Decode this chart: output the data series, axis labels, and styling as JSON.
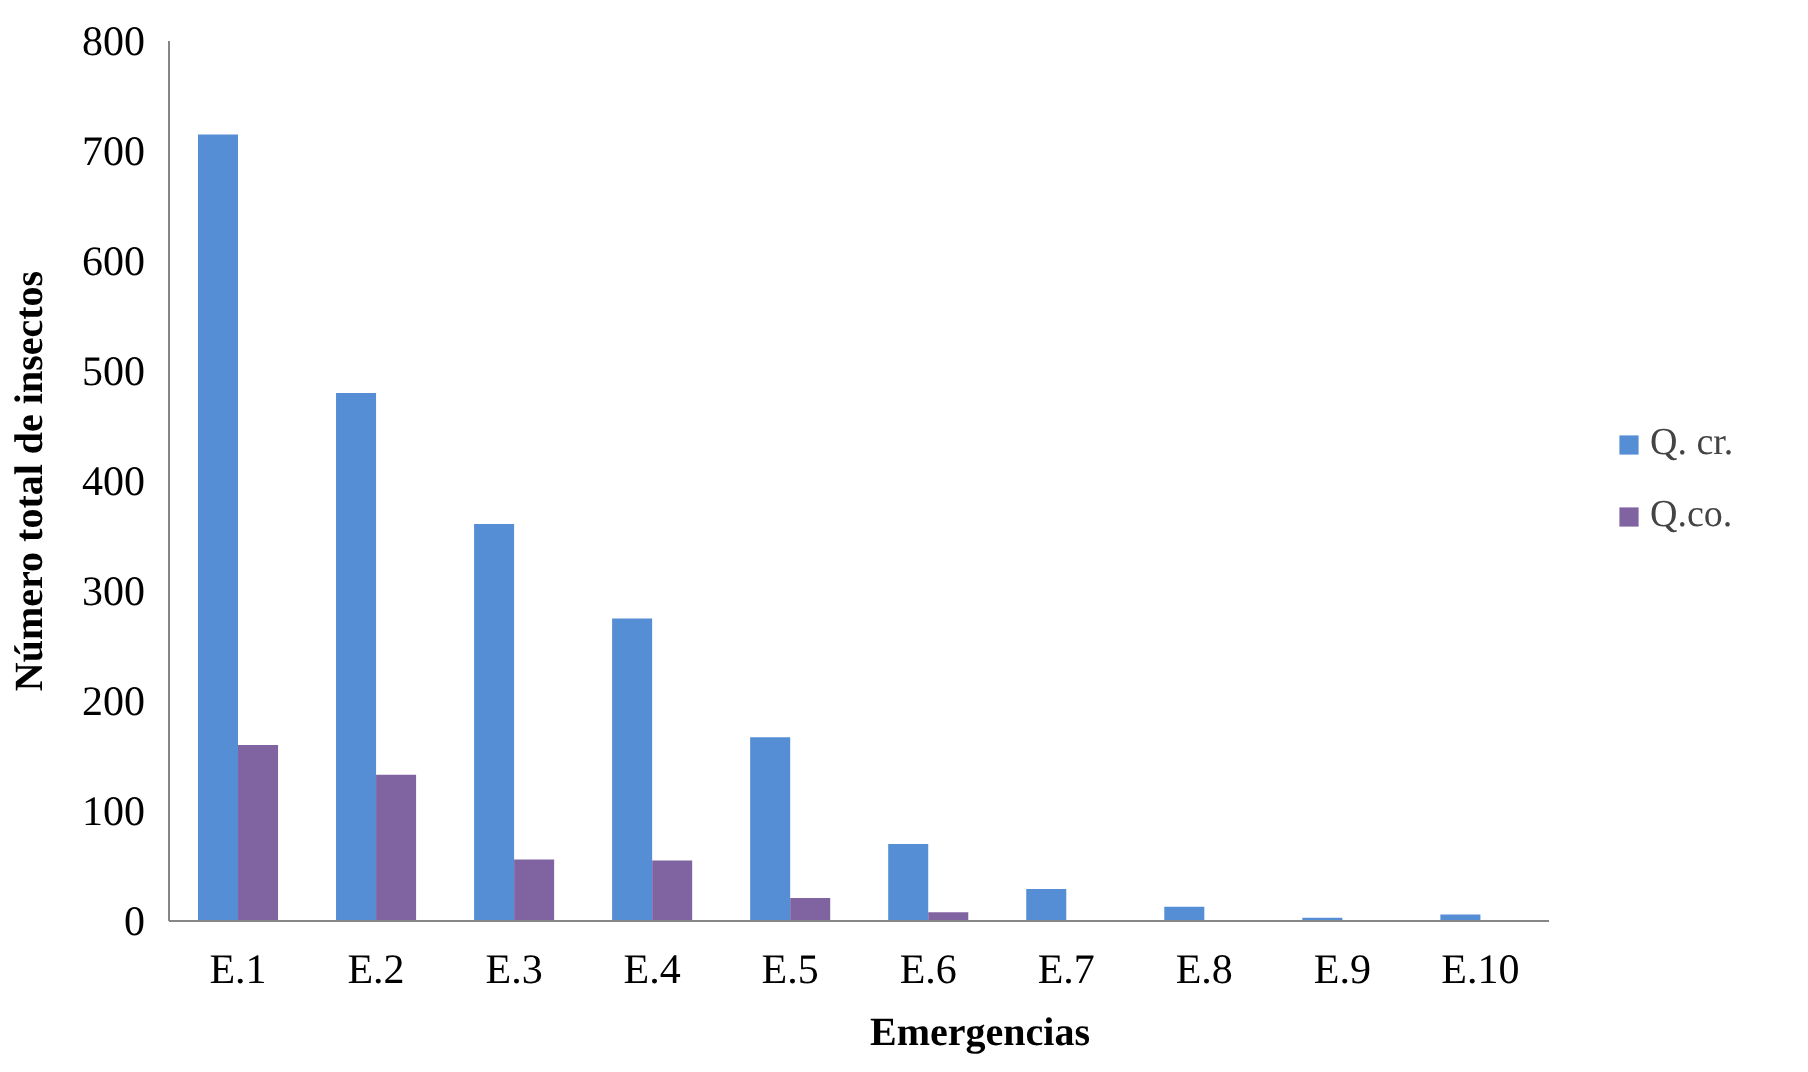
{
  "chart_data": {
    "type": "bar",
    "xlabel": "Emergencias",
    "ylabel": "Número total de insectos",
    "categories": [
      "E.1",
      "E.2",
      "E.3",
      "E.4",
      "E.5",
      "E.6",
      "E.7",
      "E.8",
      "E.9",
      "E.10"
    ],
    "series": [
      {
        "name": "Q. cr.",
        "color": "#558ed5",
        "values": [
          715,
          480,
          361,
          275,
          167,
          70,
          29,
          13,
          3,
          6
        ]
      },
      {
        "name": "Q.co.",
        "color": "#8064a2",
        "values": [
          160,
          133,
          56,
          55,
          21,
          8,
          0,
          0,
          0,
          0
        ]
      }
    ],
    "ylim": [
      0,
      800
    ],
    "yticks": [
      0,
      100,
      200,
      300,
      400,
      500,
      600,
      700,
      800
    ],
    "grid": false,
    "legend": "right"
  }
}
